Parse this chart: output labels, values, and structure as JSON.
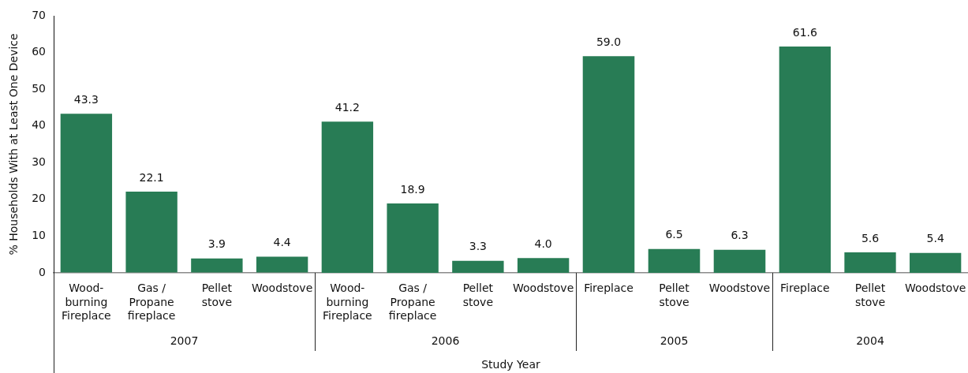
{
  "chart_data": [
    {
      "type": "bar",
      "categories": [
        "Wood-\nburning\nFireplace",
        "Gas /\nPropane\nfireplace",
        "Pellet\nstove",
        "Woodstove"
      ],
      "values": [
        43.3,
        22.1,
        3.9,
        4.4
      ],
      "value_labels": [
        "43.3",
        "22.1",
        "3.9",
        "4.4"
      ],
      "color": "#287c55",
      "ylim": [
        0,
        70
      ],
      "yticks": [
        0,
        10,
        20,
        30,
        40,
        50,
        60,
        70
      ],
      "ylabel": "% Households With at Least One Device",
      "xlabel": "2007",
      "grid": false,
      "annotations": [
        "Study Year"
      ]
    },
    {
      "type": "bar",
      "categories": [
        "Wood-\nburning\nFireplace",
        "Gas /\nPropane\nfireplace",
        "Pellet\nstove",
        "Woodstove"
      ],
      "values": [
        41.2,
        18.9,
        3.3,
        4.0
      ],
      "value_labels": [
        "41.2",
        "18.9",
        "3.3",
        "4.0"
      ],
      "color": "#287c55",
      "ylim": [
        0,
        70
      ],
      "xlabel": "2006",
      "grid": false,
      "tick_labels": "x"
    },
    {
      "type": "bar",
      "categories": [
        "Fireplace",
        "Pellet\nstove",
        "Woodstove"
      ],
      "values": [
        59.0,
        6.5,
        6.3
      ],
      "value_labels": [
        "59.0",
        "6.5",
        "6.3"
      ],
      "color": "#287c55",
      "ylim": [
        0,
        70
      ],
      "xlabel": "2005",
      "grid": false,
      "tick_labels": "x"
    },
    {
      "type": "bar",
      "categories": [
        "Fireplace",
        "Pellet\nstove",
        "Woodstove"
      ],
      "values": [
        61.6,
        5.6,
        5.4
      ],
      "value_labels": [
        "61.6",
        "5.6",
        "5.4"
      ],
      "color": "#287c55",
      "ylim": [
        0,
        70
      ],
      "xlabel": "2004",
      "grid": false,
      "tick_labels": "x"
    }
  ]
}
